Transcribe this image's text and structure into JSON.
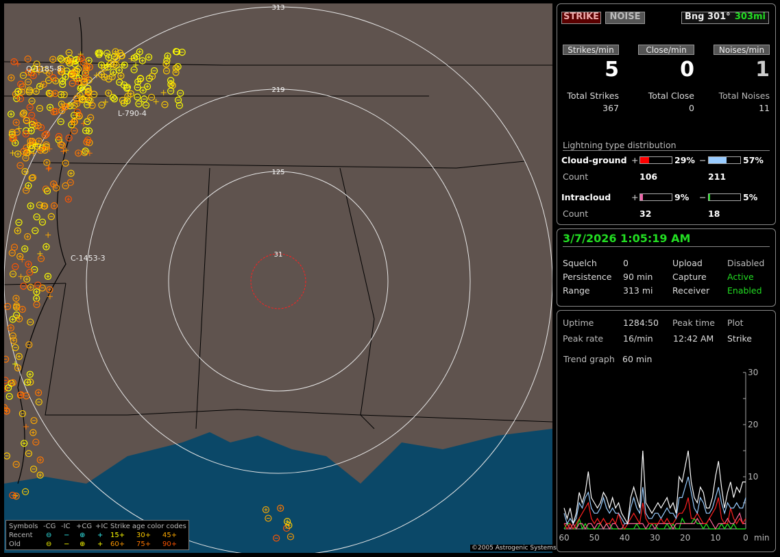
{
  "map": {
    "range_rings": [
      "31",
      "125",
      "219",
      "313"
    ],
    "storms": [
      "Q-1185-8",
      "L-790-4",
      "C-1453-3"
    ],
    "copyright": "©2005 Astrogenic Systems",
    "colors": {
      "land": "#5f534e",
      "water": "#0b4868",
      "ring": "#e8e8e8",
      "close_ring": "#ff2020"
    },
    "legend": {
      "symbols_label": "Symbols",
      "headers": [
        "-CG",
        "-IC",
        "+CG",
        "+IC"
      ],
      "recent_label": "Recent",
      "old_label": "Old",
      "age_title": "Strike age color codes",
      "ages": [
        {
          "label": "15+",
          "color": "#ffff00"
        },
        {
          "label": "30+",
          "color": "#ffcc00"
        },
        {
          "label": "45+",
          "color": "#ffaa00"
        },
        {
          "label": "60+",
          "color": "#ff9900"
        },
        {
          "label": "75+",
          "color": "#ff7700"
        },
        {
          "label": "90+",
          "color": "#ff5500"
        }
      ]
    }
  },
  "header": {
    "strike_button": "STRIKE",
    "noise_button": "NOISE",
    "bearing": "Bng 301°",
    "distance": "303mi"
  },
  "rates": [
    {
      "label": "Strikes/min",
      "value": "5",
      "total_label": "Total Strikes",
      "total": "367"
    },
    {
      "label": "Close/min",
      "value": "0",
      "total_label": "Total Close",
      "total": "0"
    },
    {
      "label": "Noises/min",
      "value": "1",
      "total_label": "Total Noises",
      "total": "11"
    }
  ],
  "distribution": {
    "title": "Lightning type distribution",
    "cg": {
      "label": "Cloud-ground",
      "pos_pct": "29%",
      "neg_pct": "57%",
      "pos_frac": 0.29,
      "neg_frac": 0.57,
      "count_label": "Count",
      "pos_count": "106",
      "neg_count": "211"
    },
    "ic": {
      "label": "Intracloud",
      "pos_pct": "9%",
      "neg_pct": "5%",
      "pos_frac": 0.09,
      "neg_frac": 0.05,
      "count_label": "Count",
      "pos_count": "32",
      "neg_count": "18"
    },
    "plus": "+",
    "minus": "−"
  },
  "status": {
    "datetime": "3/7/2026 1:05:19 AM",
    "rows": [
      {
        "k1": "Squelch",
        "v1": "0",
        "k2": "Upload",
        "v2": "Disabled"
      },
      {
        "k1": "Persistence",
        "v1": "90 min",
        "k2": "Capture",
        "v2": "Active"
      },
      {
        "k1": "Range",
        "v1": "313 mi",
        "k2": "Receiver",
        "v2": "Enabled"
      }
    ]
  },
  "stats": {
    "uptime_label": "Uptime",
    "uptime": "1284:50",
    "peak_time_label": "Peak time",
    "plot_label": "Plot",
    "peak_rate_label": "Peak rate",
    "peak_rate": "16/min",
    "peak_time": "12:42 AM",
    "plot": "Strike",
    "trend_label": "Trend graph",
    "trend": "60 min"
  },
  "chart_data": {
    "type": "line",
    "x_ticks": [
      "60",
      "50",
      "40",
      "30",
      "20",
      "10",
      "0"
    ],
    "x_unit": "min",
    "y_ticks": [
      "10",
      "20",
      "30"
    ],
    "ylim": [
      0,
      30
    ],
    "xlim": [
      60,
      0
    ],
    "series": [
      {
        "color": "#ffffff",
        "values": [
          4,
          2,
          4,
          1,
          3,
          7,
          5,
          7,
          11,
          6,
          5,
          4,
          5,
          7,
          6,
          4,
          6,
          4,
          5,
          3,
          2,
          1,
          6,
          8,
          6,
          4,
          15,
          5,
          4,
          3,
          4,
          5,
          4,
          5,
          6,
          4,
          5,
          3,
          10,
          9,
          12,
          15,
          9,
          6,
          5,
          8,
          7,
          4,
          4,
          6,
          10,
          13,
          8,
          4,
          7,
          9,
          6,
          8,
          7,
          9,
          9
        ]
      },
      {
        "color": "#99ccff",
        "values": [
          3,
          1,
          2,
          1,
          2,
          5,
          4,
          6,
          7,
          4,
          3,
          3,
          4,
          6,
          4,
          3,
          4,
          3,
          3,
          2,
          1,
          1,
          4,
          6,
          4,
          3,
          8,
          3,
          2,
          2,
          3,
          3,
          2,
          3,
          4,
          3,
          3,
          2,
          6,
          6,
          8,
          10,
          7,
          4,
          3,
          6,
          5,
          3,
          3,
          4,
          6,
          8,
          5,
          3,
          5,
          4,
          4,
          5,
          4,
          4,
          6
        ]
      },
      {
        "color": "#ff2020",
        "values": [
          1,
          0,
          1,
          0,
          1,
          2,
          3,
          4,
          5,
          2,
          1,
          2,
          1,
          2,
          1,
          1,
          2,
          1,
          3,
          1,
          0,
          1,
          2,
          3,
          2,
          1,
          5,
          2,
          1,
          1,
          1,
          1,
          2,
          1,
          2,
          1,
          1,
          2,
          3,
          3,
          4,
          6,
          2,
          2,
          3,
          2,
          1,
          1,
          2,
          3,
          4,
          6,
          2,
          1,
          1,
          4,
          2,
          1,
          2,
          1,
          2
        ]
      },
      {
        "color": "#ff6699",
        "values": [
          1,
          1,
          0,
          1,
          0,
          1,
          1,
          0,
          1,
          1,
          0,
          1,
          1,
          0,
          1,
          0,
          1,
          1,
          0,
          0,
          1,
          1,
          1,
          1,
          1,
          1,
          1,
          0,
          1,
          1,
          0,
          1,
          1,
          1,
          1,
          1,
          0,
          1,
          1,
          1,
          1,
          1,
          1,
          1,
          2,
          1,
          1,
          1,
          2,
          1,
          0,
          1,
          1,
          1,
          2,
          1,
          1,
          2,
          3,
          1,
          1
        ]
      },
      {
        "color": "#22ee22",
        "values": [
          0,
          1,
          1,
          0,
          0,
          2,
          0,
          1,
          0,
          0,
          0,
          0,
          1,
          0,
          1,
          1,
          0,
          0,
          0,
          0,
          0,
          0,
          0,
          0,
          1,
          0,
          0,
          0,
          0,
          1,
          1,
          0,
          0,
          0,
          1,
          0,
          1,
          0,
          0,
          2,
          1,
          1,
          1,
          2,
          1,
          1,
          0,
          1,
          0,
          0,
          0,
          0,
          1,
          0,
          1,
          0,
          1,
          0,
          0,
          0,
          0
        ]
      }
    ]
  }
}
